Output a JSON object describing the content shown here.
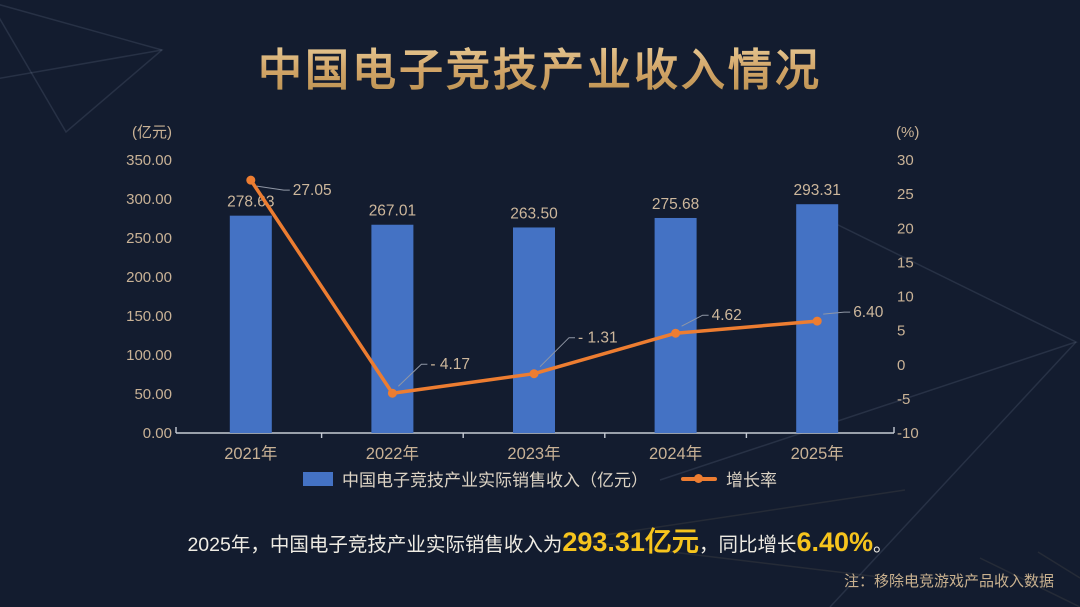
{
  "title": "中国电子竞技产业收入情况",
  "chart_data": {
    "type": "bar+line",
    "title": "中国电子竞技产业收入情况",
    "categories": [
      "2021年",
      "2022年",
      "2023年",
      "2024年",
      "2025年"
    ],
    "series": [
      {
        "name": "中国电子竞技产业实际销售收入（亿元）",
        "type": "bar",
        "axis": "left",
        "values": [
          278.63,
          267.01,
          263.5,
          275.68,
          293.31
        ],
        "labels": [
          "278.63",
          "267.01",
          "263.50",
          "275.68",
          "293.31"
        ],
        "color": "#4472c4"
      },
      {
        "name": "增长率",
        "type": "line",
        "axis": "right",
        "values": [
          27.05,
          -4.17,
          -1.31,
          4.62,
          6.4
        ],
        "labels": [
          "27.05",
          "- 4.17",
          "- 1.31",
          "4.62",
          "6.40"
        ],
        "color": "#ed7d31"
      }
    ],
    "left_axis": {
      "unit": "(亿元)",
      "min": 0,
      "max": 350,
      "ticks": [
        "350.00",
        "300.00",
        "250.00",
        "200.00",
        "150.00",
        "100.00",
        "50.00",
        "0.00"
      ]
    },
    "right_axis": {
      "unit": "(%)",
      "min": -10,
      "max": 30,
      "ticks": [
        "30",
        "25",
        "20",
        "15",
        "10",
        "5",
        "0",
        "-5",
        "-10"
      ]
    },
    "grid": false,
    "legend_position": "bottom"
  },
  "summary": {
    "prefix": "2025年，中国电子竞技产业实际销售收入为",
    "highlight_revenue": "293.31亿元",
    "middle": "，同比增长",
    "highlight_growth": "6.40%",
    "suffix": "。"
  },
  "note": "注：移除电竞游戏产品收入数据",
  "colors": {
    "background": "#131c2f",
    "bar": "#4472c4",
    "line": "#ed7d31",
    "axis_text": "#c9b296",
    "title_gold": "#d2a568",
    "highlight_gold": "#f6c41d",
    "legend_text": "#dcd3c4"
  }
}
